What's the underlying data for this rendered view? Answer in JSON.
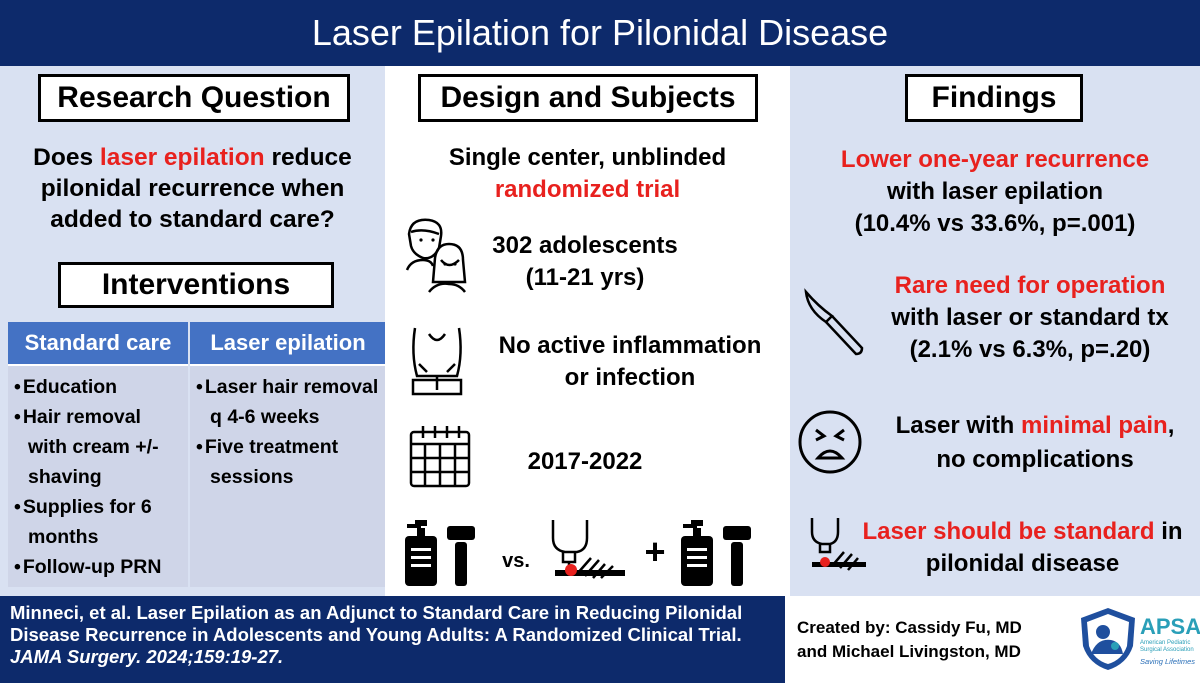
{
  "title": "Laser Epilation for Pilonidal Disease",
  "research_question": {
    "heading": "Research Question",
    "text_1": "Does ",
    "text_highlight": "laser epilation",
    "text_2": " reduce pilonidal recurrence when added to standard care?"
  },
  "interventions": {
    "heading": "Interventions",
    "columns": [
      {
        "header": "Standard care",
        "items": [
          "Education",
          "Hair removal with cream +/- shaving",
          "Supplies for 6 months",
          "Follow-up PRN"
        ]
      },
      {
        "header": "Laser epilation",
        "items": [
          "Laser hair removal q 4-6 weeks",
          "Five treatment sessions"
        ]
      }
    ]
  },
  "design": {
    "heading": "Design and Subjects",
    "line1": "Single center, unblinded",
    "line2": "randomized trial",
    "subjects_1": "302 adolescents",
    "subjects_2": "(11-21 yrs)",
    "criteria_1": "No active inflammation",
    "criteria_2": "or infection",
    "years": "2017-2022",
    "vs_label": "vs.",
    "plus_label": "+"
  },
  "findings": {
    "heading": "Findings",
    "f1_red": "Lower one-year recurrence",
    "f1_line2": "with laser epilation",
    "f1_line3": "(10.4% vs 33.6%, p=.001)",
    "f2_red": "Rare need for operation",
    "f2_line2": "with laser or standard tx",
    "f2_line3": "(2.1% vs 6.3%, p=.20)",
    "f3_a": "Laser with ",
    "f3_red": "minimal pain",
    "f3_b": ",",
    "f3_line2": "no complications",
    "f4_red": "Laser should be standard",
    "f4_a": " in",
    "f4_line2": "pilonidal disease"
  },
  "citation": {
    "line1": "Minneci, et al. Laser Epilation as an Adjunct to Standard Care in Reducing Pilonidal",
    "line2": "Disease Recurrence in Adolescents and Young Adults: A Randomized Clinical Trial.",
    "journal": "JAMA Surgery. 2024;159:19-27."
  },
  "credits": {
    "line1": "Created by: Cassidy Fu, MD",
    "line2": "and Michael Livingston, MD"
  },
  "apsa": {
    "name": "APSA",
    "full_1": "American Pediatric",
    "full_2": "Surgical Association",
    "tagline": "Saving Lifetimes"
  },
  "colors": {
    "navy": "#0d2a6b",
    "red": "#e8211e",
    "panel": "#d9e1f2",
    "table_header": "#4472c4"
  }
}
